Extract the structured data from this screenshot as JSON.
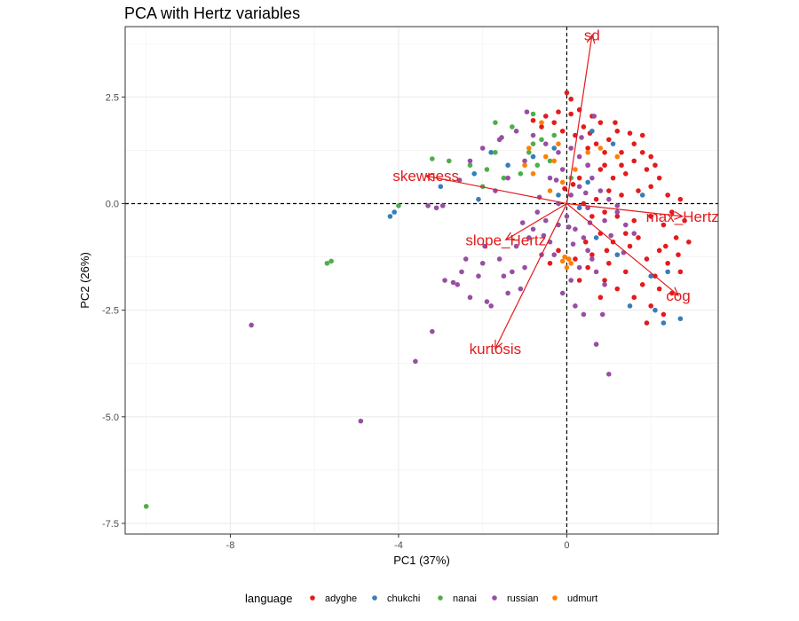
{
  "chart_data": {
    "type": "scatter",
    "title": "PCA with Hertz variables",
    "xlabel": "PC1 (37%)",
    "ylabel": "PC2 (26%)",
    "xlim": [
      -10.5,
      3.6
    ],
    "ylim": [
      -7.75,
      4.15
    ],
    "x_ticks": [
      -8,
      -4,
      0
    ],
    "y_ticks": [
      2.5,
      0.0,
      -2.5,
      -5.0,
      -7.5
    ],
    "grid": true,
    "reference_lines": {
      "x": 0,
      "y": 0,
      "style": "dashed"
    },
    "legend": {
      "title": "language",
      "placement": "bottom"
    },
    "series": [
      {
        "name": "adyghe",
        "color": "#e41a1c",
        "points": [
          [
            -0.2,
            2.15
          ],
          [
            0.1,
            2.1
          ],
          [
            0.3,
            2.2
          ],
          [
            -0.5,
            2.05
          ],
          [
            -0.8,
            1.95
          ],
          [
            0.6,
            2.05
          ],
          [
            0.8,
            1.9
          ],
          [
            -0.3,
            1.9
          ],
          [
            0.4,
            1.8
          ],
          [
            1.2,
            1.7
          ],
          [
            1.5,
            1.65
          ],
          [
            1.8,
            1.6
          ],
          [
            1.0,
            1.5
          ],
          [
            0.7,
            1.4
          ],
          [
            0.2,
            1.6
          ],
          [
            -0.1,
            1.7
          ],
          [
            1.3,
            1.2
          ],
          [
            0.9,
            1.2
          ],
          [
            0.5,
            1.3
          ],
          [
            1.6,
            1.0
          ],
          [
            1.9,
            0.8
          ],
          [
            2.2,
            0.6
          ],
          [
            1.4,
            0.7
          ],
          [
            1.1,
            0.6
          ],
          [
            0.8,
            0.8
          ],
          [
            0.5,
            0.9
          ],
          [
            2.0,
            0.4
          ],
          [
            2.4,
            0.2
          ],
          [
            2.7,
            0.1
          ],
          [
            1.7,
            0.3
          ],
          [
            1.3,
            0.2
          ],
          [
            1.0,
            0.3
          ],
          [
            0.7,
            0.1
          ],
          [
            0.4,
            0.0
          ],
          [
            2.5,
            -0.2
          ],
          [
            2.8,
            -0.4
          ],
          [
            2.3,
            -0.5
          ],
          [
            2.0,
            -0.3
          ],
          [
            1.6,
            -0.4
          ],
          [
            1.2,
            -0.3
          ],
          [
            0.9,
            -0.2
          ],
          [
            0.6,
            -0.3
          ],
          [
            2.6,
            -0.8
          ],
          [
            2.9,
            -0.9
          ],
          [
            2.2,
            -1.1
          ],
          [
            1.9,
            -1.3
          ],
          [
            1.5,
            -1.0
          ],
          [
            1.1,
            -0.9
          ],
          [
            0.8,
            -0.7
          ],
          [
            2.4,
            -1.4
          ],
          [
            2.7,
            -1.6
          ],
          [
            2.1,
            -1.7
          ],
          [
            1.8,
            -1.9
          ],
          [
            1.4,
            -1.6
          ],
          [
            1.0,
            -1.4
          ],
          [
            0.6,
            -1.2
          ],
          [
            2.2,
            -2.0
          ],
          [
            2.5,
            -2.1
          ],
          [
            2.0,
            -2.4
          ],
          [
            1.6,
            -2.2
          ],
          [
            1.2,
            -2.0
          ],
          [
            0.9,
            -1.8
          ],
          [
            0.5,
            -1.5
          ],
          [
            0.2,
            -1.3
          ],
          [
            -0.2,
            -1.1
          ],
          [
            2.3,
            -2.6
          ],
          [
            1.9,
            -2.8
          ],
          [
            0.8,
            -2.2
          ],
          [
            0.3,
            -1.8
          ],
          [
            -0.4,
            -1.4
          ],
          [
            0.0,
            2.6
          ],
          [
            0.1,
            2.45
          ],
          [
            -0.6,
            1.8
          ],
          [
            1.6,
            1.4
          ],
          [
            1.8,
            1.2
          ],
          [
            2.0,
            1.1
          ],
          [
            2.1,
            0.9
          ],
          [
            1.3,
            0.9
          ],
          [
            0.9,
            0.9
          ],
          [
            0.3,
            0.6
          ],
          [
            0.15,
            0.45
          ],
          [
            -0.05,
            0.35
          ],
          [
            1.4,
            -0.7
          ],
          [
            1.7,
            -0.8
          ],
          [
            2.35,
            -1.0
          ],
          [
            2.65,
            -1.2
          ],
          [
            0.95,
            -1.1
          ],
          [
            0.45,
            -0.9
          ],
          [
            1.15,
            1.9
          ],
          [
            0.55,
            1.65
          ]
        ]
      },
      {
        "name": "chukchi",
        "color": "#377eb8",
        "points": [
          [
            2.7,
            -2.7
          ],
          [
            2.3,
            -2.8
          ],
          [
            2.1,
            -2.5
          ],
          [
            2.0,
            -1.7
          ],
          [
            2.4,
            -1.6
          ],
          [
            1.5,
            -2.4
          ],
          [
            1.2,
            -1.2
          ],
          [
            0.7,
            -0.8
          ],
          [
            0.5,
            0.5
          ],
          [
            1.1,
            1.4
          ],
          [
            0.6,
            1.7
          ],
          [
            -0.3,
            1.3
          ],
          [
            -0.8,
            1.1
          ],
          [
            -1.4,
            0.9
          ],
          [
            -2.2,
            0.7
          ],
          [
            -3.0,
            0.4
          ],
          [
            -2.1,
            0.1
          ],
          [
            -4.1,
            -0.2
          ],
          [
            -4.2,
            -0.3
          ],
          [
            -1.8,
            1.2
          ],
          [
            -0.2,
            0.2
          ],
          [
            0.3,
            -0.1
          ],
          [
            1.8,
            0.2
          ]
        ]
      },
      {
        "name": "nanai",
        "color": "#4daf4a",
        "points": [
          [
            -10.0,
            -7.1
          ],
          [
            -5.7,
            -1.4
          ],
          [
            -5.6,
            -1.35
          ],
          [
            -4.0,
            -0.05
          ],
          [
            -3.2,
            1.05
          ],
          [
            -2.8,
            1.0
          ],
          [
            -2.3,
            0.9
          ],
          [
            -1.9,
            0.8
          ],
          [
            -1.5,
            0.6
          ],
          [
            -1.1,
            0.7
          ],
          [
            -0.8,
            1.4
          ],
          [
            -0.6,
            1.5
          ],
          [
            -0.4,
            1.0
          ],
          [
            -0.9,
            1.2
          ],
          [
            -1.3,
            1.8
          ],
          [
            -1.7,
            1.9
          ],
          [
            -0.8,
            2.1
          ],
          [
            -0.3,
            1.6
          ],
          [
            0.1,
            0.6
          ],
          [
            -0.7,
            0.9
          ],
          [
            -2.0,
            0.4
          ],
          [
            -1.7,
            1.2
          ]
        ]
      },
      {
        "name": "russian",
        "color": "#984ea3",
        "points": [
          [
            -7.5,
            -2.85
          ],
          [
            -4.9,
            -5.1
          ],
          [
            -3.6,
            -3.7
          ],
          [
            -3.2,
            -3.0
          ],
          [
            -2.9,
            -1.8
          ],
          [
            -2.7,
            -1.85
          ],
          [
            -2.5,
            -1.6
          ],
          [
            -2.4,
            -1.3
          ],
          [
            -2.1,
            -1.7
          ],
          [
            -1.9,
            -2.3
          ],
          [
            -1.8,
            -2.4
          ],
          [
            -1.6,
            -1.3
          ],
          [
            -1.5,
            -1.7
          ],
          [
            -1.4,
            -2.1
          ],
          [
            -1.3,
            -1.6
          ],
          [
            -1.2,
            -1.0
          ],
          [
            -1.0,
            -1.5
          ],
          [
            -0.9,
            -0.8
          ],
          [
            -0.8,
            -0.6
          ],
          [
            -0.6,
            -1.2
          ],
          [
            -0.4,
            -0.9
          ],
          [
            -0.2,
            -0.5
          ],
          [
            0.0,
            -0.3
          ],
          [
            0.2,
            -0.6
          ],
          [
            0.4,
            -0.8
          ],
          [
            0.5,
            -1.1
          ],
          [
            0.7,
            -1.6
          ],
          [
            0.9,
            -1.9
          ],
          [
            0.6,
            -1.3
          ],
          [
            0.3,
            -1.5
          ],
          [
            0.1,
            -1.8
          ],
          [
            -0.1,
            -2.1
          ],
          [
            0.2,
            -2.4
          ],
          [
            0.4,
            -2.6
          ],
          [
            -0.3,
            -1.2
          ],
          [
            -0.5,
            -0.4
          ],
          [
            -0.7,
            -0.2
          ],
          [
            -0.2,
            0.0
          ],
          [
            0.1,
            0.2
          ],
          [
            0.3,
            0.4
          ],
          [
            0.6,
            0.6
          ],
          [
            0.8,
            0.3
          ],
          [
            1.0,
            0.1
          ],
          [
            1.2,
            -0.2
          ],
          [
            1.4,
            -0.5
          ],
          [
            1.6,
            -0.7
          ],
          [
            0.9,
            -0.4
          ],
          [
            0.5,
            -0.1
          ],
          [
            -3.3,
            -0.05
          ],
          [
            -3.1,
            -0.1
          ],
          [
            -2.3,
            1.0
          ],
          [
            -2.0,
            1.3
          ],
          [
            -1.6,
            1.5
          ],
          [
            -1.2,
            1.7
          ],
          [
            -0.8,
            1.6
          ],
          [
            -0.5,
            1.4
          ],
          [
            -0.2,
            1.2
          ],
          [
            0.1,
            1.3
          ],
          [
            0.3,
            1.1
          ],
          [
            0.5,
            0.9
          ],
          [
            -1.0,
            1.0
          ],
          [
            -1.4,
            0.6
          ],
          [
            -1.7,
            0.3
          ],
          [
            -0.4,
            0.6
          ],
          [
            -0.1,
            0.8
          ],
          [
            0.7,
            -3.3
          ],
          [
            1.0,
            -4.0
          ],
          [
            -2.3,
            -2.2
          ],
          [
            -2.6,
            -1.9
          ],
          [
            -1.95,
            -1.0
          ],
          [
            -1.05,
            -0.45
          ],
          [
            -0.55,
            -0.75
          ],
          [
            0.15,
            -0.95
          ],
          [
            0.55,
            -0.45
          ],
          [
            1.05,
            -0.75
          ],
          [
            1.35,
            -1.15
          ],
          [
            -0.25,
            0.55
          ],
          [
            0.35,
            1.55
          ],
          [
            0.65,
            2.05
          ],
          [
            -0.95,
            2.15
          ],
          [
            -1.55,
            1.55
          ],
          [
            -2.55,
            0.55
          ],
          [
            -2.95,
            -0.05
          ],
          [
            -2.0,
            -1.4
          ],
          [
            -1.1,
            -2.0
          ],
          [
            0.85,
            -2.6
          ],
          [
            1.2,
            -0.05
          ],
          [
            -0.65,
            0.15
          ],
          [
            0.05,
            -0.55
          ],
          [
            0.45,
            0.25
          ]
        ]
      },
      {
        "name": "udmurt",
        "color": "#ff7f00",
        "points": [
          [
            -0.1,
            -1.35
          ],
          [
            -0.05,
            -1.25
          ],
          [
            0.0,
            -1.5
          ],
          [
            0.05,
            -1.3
          ],
          [
            0.1,
            -1.4
          ],
          [
            -0.6,
            1.9
          ],
          [
            -0.3,
            1.0
          ],
          [
            -0.1,
            0.5
          ],
          [
            -0.4,
            0.3
          ],
          [
            -0.8,
            0.7
          ],
          [
            -1.0,
            0.9
          ],
          [
            -0.5,
            1.1
          ],
          [
            0.2,
            0.8
          ],
          [
            0.5,
            1.2
          ],
          [
            1.2,
            1.1
          ],
          [
            -0.2,
            1.4
          ],
          [
            -0.9,
            1.3
          ],
          [
            0.8,
            1.3
          ]
        ]
      }
    ],
    "loadings": [
      {
        "label": "sd",
        "x": 0.6,
        "y": 3.95
      },
      {
        "label": "skewness",
        "x": -3.35,
        "y": 0.65
      },
      {
        "label": "max_Hertz",
        "x": 2.75,
        "y": -0.3
      },
      {
        "label": "slope_Hertz",
        "x": -1.45,
        "y": -0.85
      },
      {
        "label": "cog",
        "x": 2.65,
        "y": -2.15
      },
      {
        "label": "kurtosis",
        "x": -1.7,
        "y": -3.4
      }
    ],
    "loading_color": "#e31a1c"
  }
}
